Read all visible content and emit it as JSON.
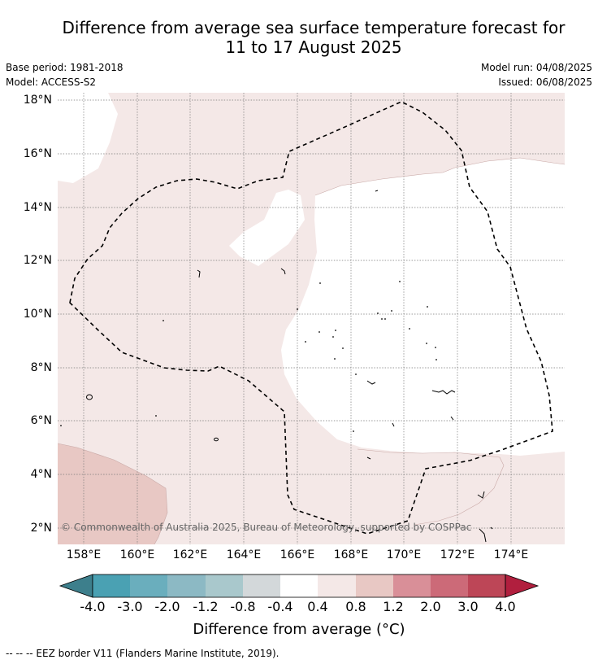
{
  "title": {
    "line1": "Difference from average sea surface temperature forecast for",
    "line2": "11 to 17 August 2025"
  },
  "meta": {
    "base_period": "Base period: 1981-2018",
    "model": "Model: ACCESS-S2",
    "model_run": "Model run: 04/08/2025",
    "issued": "Issued: 06/08/2025"
  },
  "map": {
    "lat_labels": [
      "18°N",
      "16°N",
      "14°N",
      "12°N",
      "10°N",
      "8°N",
      "6°N",
      "4°N",
      "2°N"
    ],
    "lon_labels": [
      "158°E",
      "160°E",
      "162°E",
      "164°E",
      "166°E",
      "168°E",
      "170°E",
      "172°E",
      "174°E"
    ],
    "credit": "© Commonwealth of Australia 2025, Bureau of Meteorology, supported by COSPPac",
    "colors": {
      "band_0.4_0.8": "#f4e8e7",
      "band_0.8_1.2": "#e8c8c4",
      "band_-0.4_0.4": "#ffffff"
    }
  },
  "colorbar": {
    "labels": [
      "-4.0",
      "-3.0",
      "-2.0",
      "-1.2",
      "-0.8",
      "-0.4",
      "0.4",
      "0.8",
      "1.2",
      "2.0",
      "3.0",
      "4.0"
    ],
    "colors": [
      "#3d7f8c",
      "#4aa1b3",
      "#6aaebd",
      "#8cb9c4",
      "#a9c8cc",
      "#d3d8da",
      "#ffffff",
      "#f4e8e7",
      "#e8c8c4",
      "#d98f98",
      "#cc6a78",
      "#bd4657",
      "#b11f3e"
    ],
    "title": "Difference from average (°C)"
  },
  "footnote": "--  --  -- EEZ border V11 (Flanders Marine Institute, 2019)."
}
